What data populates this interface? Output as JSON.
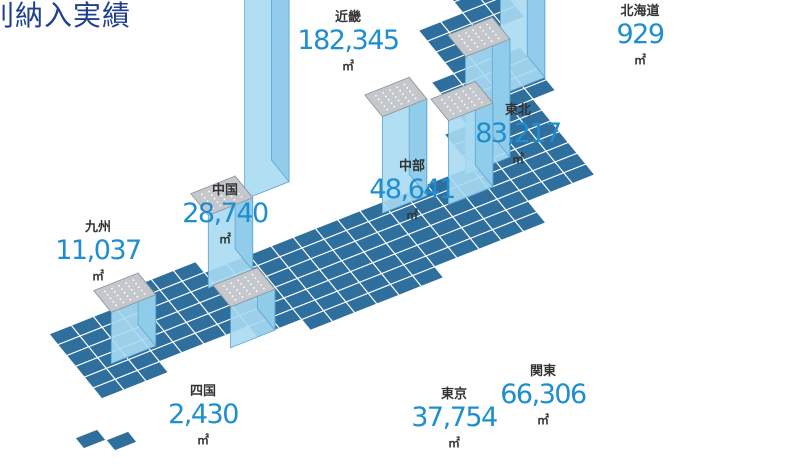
{
  "title": "別納入実績",
  "colors": {
    "tile": "#2e6f9e",
    "tileEdge": "#ffffff",
    "pillarTop": "#c4c8cc",
    "pillarSide": "#8ecbea",
    "pillarFront": "#a9daf2",
    "value": "#1e8ed0",
    "label": "#333333",
    "title": "#1f3f8f"
  },
  "chart_data": {
    "type": "bar",
    "title": "別納入実績",
    "unit": "㎡",
    "categories": [
      "北海道",
      "東北",
      "関東",
      "東京",
      "中部",
      "近畿",
      "中国",
      "四国",
      "九州"
    ],
    "values": [
      929,
      83217,
      66306,
      37754,
      48641,
      182345,
      28740,
      2430,
      11037
    ],
    "value_labels": [
      "929",
      "83,217",
      "66,306",
      "37,754",
      "48,641",
      "182,345",
      "28,740",
      "2,430",
      "11,037"
    ],
    "series": [
      {
        "values": [
          929,
          83217,
          66306,
          37754,
          48641,
          182345,
          28740,
          2430,
          11037
        ]
      }
    ]
  }
}
